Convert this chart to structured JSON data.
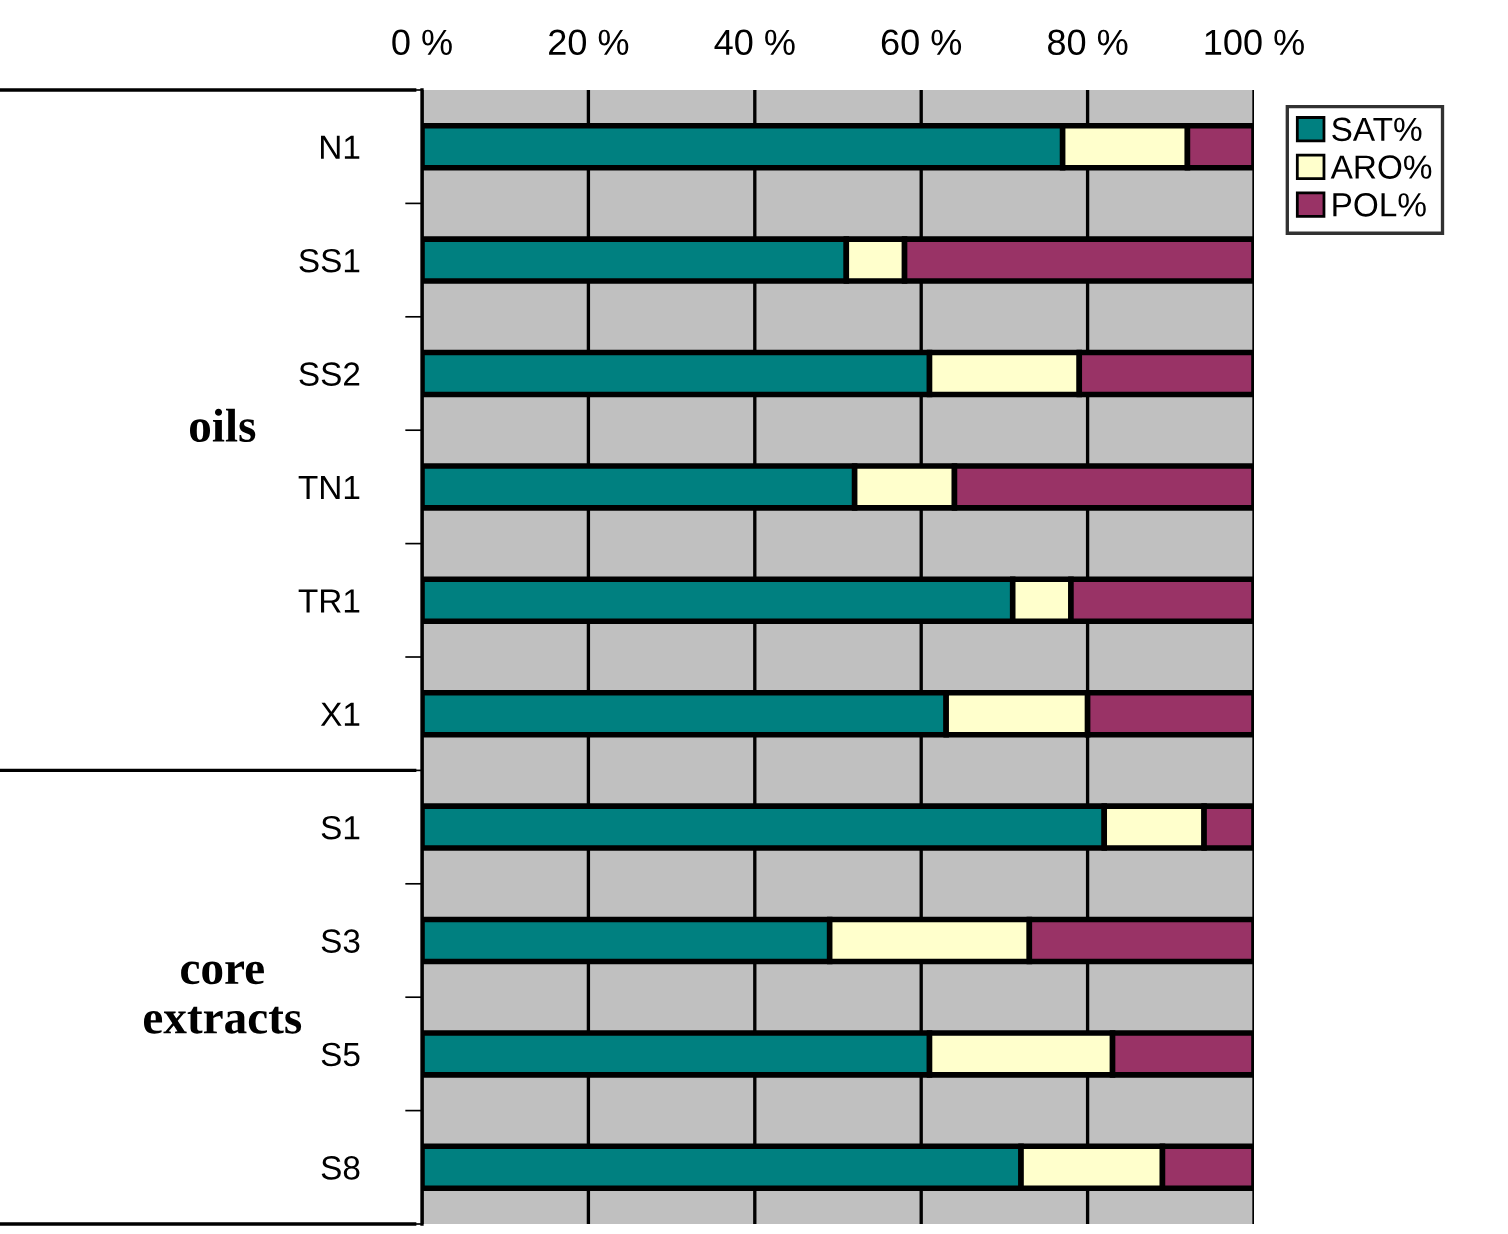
{
  "chart_data": {
    "type": "bar",
    "orientation": "horizontal",
    "stacked": true,
    "categories": [
      "N1",
      "SS1",
      "SS2",
      "TN1",
      "TR1",
      "X1",
      "S1",
      "S3",
      "S5",
      "S8"
    ],
    "series": [
      {
        "name": "SAT%",
        "color": "#008080",
        "values": [
          77,
          51,
          61,
          52,
          71,
          63,
          82,
          49,
          61,
          72
        ]
      },
      {
        "name": "ARO%",
        "color": "#ffffcc",
        "values": [
          15,
          7,
          18,
          12,
          7,
          17,
          12,
          24,
          22,
          17
        ]
      },
      {
        "name": "POL%",
        "color": "#993366",
        "values": [
          8,
          42,
          21,
          36,
          22,
          20,
          6,
          27,
          17,
          11
        ]
      }
    ],
    "xlim": [
      0,
      100
    ],
    "xticks": [
      {
        "value": 0,
        "label": "0 %"
      },
      {
        "value": 20,
        "label": "20 %"
      },
      {
        "value": 40,
        "label": "40 %"
      },
      {
        "value": 60,
        "label": "60 %"
      },
      {
        "value": 80,
        "label": "80 %"
      },
      {
        "value": 100,
        "label": "100 %"
      }
    ],
    "annotations": [
      "oils",
      "core\nextracts"
    ],
    "grid": "x",
    "legend": "top right"
  }
}
